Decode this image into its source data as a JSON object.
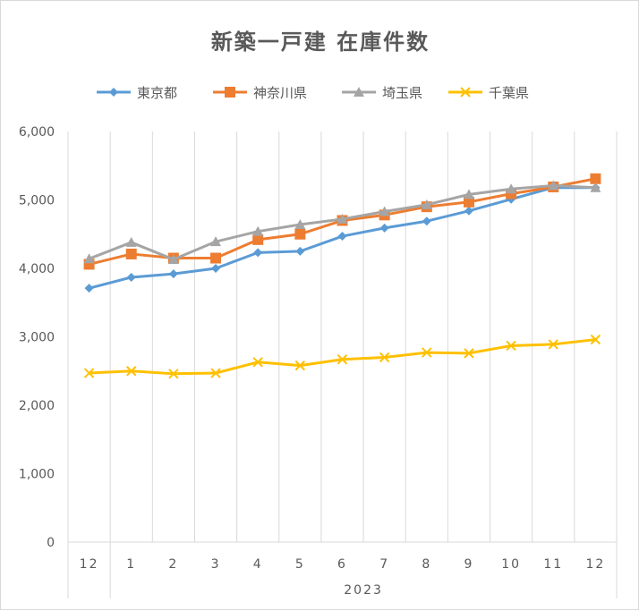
{
  "chart_data": {
    "type": "line",
    "title": "新築一戸建 在庫件数",
    "categories": [
      "12",
      "1",
      "2",
      "3",
      "4",
      "5",
      "6",
      "7",
      "8",
      "9",
      "10",
      "11",
      "12"
    ],
    "category_group": "2023",
    "ylim": [
      0,
      6000
    ],
    "yticks": [
      "0",
      "1,000",
      "2,000",
      "3,000",
      "4,000",
      "5,000",
      "6,000"
    ],
    "grid": "vertical",
    "legend_position": "top",
    "series": [
      {
        "name": "東京都",
        "color": "#5b9bd5",
        "marker": "diamond",
        "values": [
          3710,
          3870,
          3920,
          4000,
          4230,
          4250,
          4470,
          4590,
          4690,
          4840,
          5010,
          5180,
          5180
        ]
      },
      {
        "name": "神奈川県",
        "color": "#ed7d31",
        "marker": "square",
        "values": [
          4060,
          4210,
          4150,
          4150,
          4420,
          4500,
          4700,
          4780,
          4900,
          4970,
          5090,
          5190,
          5310
        ]
      },
      {
        "name": "埼玉県",
        "color": "#a5a5a5",
        "marker": "triangle",
        "values": [
          4140,
          4380,
          4130,
          4390,
          4540,
          4640,
          4720,
          4830,
          4930,
          5080,
          5160,
          5210,
          5180
        ]
      },
      {
        "name": "千葉県",
        "color": "#ffc000",
        "marker": "x",
        "values": [
          2470,
          2500,
          2460,
          2470,
          2630,
          2580,
          2670,
          2700,
          2770,
          2760,
          2870,
          2890,
          2960
        ]
      }
    ]
  }
}
